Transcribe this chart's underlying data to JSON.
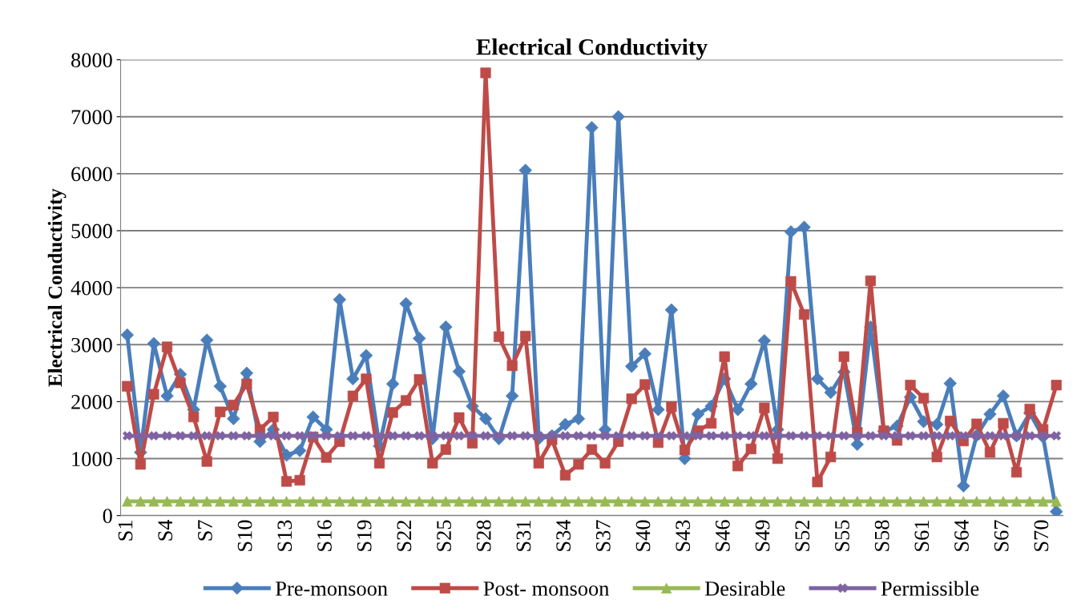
{
  "chart_data": {
    "type": "line",
    "title": "Electrical Conductivity",
    "ylabel": "Electrical Conductivity",
    "categories": [
      "S1",
      null,
      null,
      "S4",
      null,
      null,
      "S7",
      null,
      null,
      "S10",
      null,
      null,
      "S13",
      null,
      null,
      "S16",
      null,
      null,
      "S19",
      null,
      null,
      "S22",
      null,
      null,
      "S25",
      null,
      null,
      "S28",
      null,
      null,
      "S31",
      null,
      null,
      "S34",
      null,
      null,
      "S37",
      null,
      null,
      "S40",
      null,
      null,
      "S43",
      null,
      null,
      "S46",
      null,
      null,
      "S49",
      null,
      null,
      "S52",
      null,
      null,
      "S55",
      null,
      null,
      "S58",
      null,
      null,
      "S61",
      null,
      null,
      "S64",
      null,
      null,
      "S67",
      null,
      null,
      "S70",
      null
    ],
    "series": [
      {
        "name": "Pre-monsoon",
        "color": "#4a7ebb",
        "marker": "diamond",
        "values": [
          3170,
          1110,
          3020,
          2100,
          2480,
          1860,
          3080,
          2270,
          1700,
          2500,
          1300,
          1510,
          1060,
          1140,
          1730,
          1510,
          3790,
          2400,
          2810,
          1220,
          2310,
          3720,
          3110,
          1350,
          3310,
          2530,
          1920,
          1700,
          1350,
          2100,
          6060,
          1350,
          1400,
          1600,
          1700,
          6810,
          1510,
          7000,
          2620,
          2840,
          1860,
          3610,
          1000,
          1780,
          1920,
          2400,
          1860,
          2310,
          3070,
          1510,
          4980,
          5060,
          2400,
          2160,
          2520,
          1250,
          3310,
          1480,
          1570,
          2080,
          1650,
          1600,
          2320,
          520,
          1410,
          1780,
          2100,
          1400,
          1800,
          1380,
          70
        ]
      },
      {
        "name": "Post- monsoon",
        "color": "#be4b48",
        "marker": "square",
        "values": [
          2270,
          900,
          2130,
          2960,
          2330,
          1730,
          950,
          1820,
          1940,
          2310,
          1510,
          1730,
          600,
          620,
          1380,
          1020,
          1300,
          2100,
          2400,
          920,
          1810,
          2020,
          2390,
          920,
          1160,
          1720,
          1270,
          7770,
          3140,
          2630,
          3150,
          920,
          1330,
          710,
          900,
          1160,
          920,
          1300,
          2050,
          2300,
          1280,
          1910,
          1150,
          1490,
          1620,
          2790,
          870,
          1170,
          1890,
          1000,
          4110,
          3530,
          590,
          1030,
          2790,
          1460,
          4120,
          1490,
          1320,
          2290,
          2060,
          1030,
          1660,
          1310,
          1610,
          1110,
          1620,
          760,
          1870,
          1510,
          2290
        ]
      },
      {
        "name": "Desirable",
        "color": "#98b954",
        "marker": "triangle",
        "values": [
          250,
          250,
          250,
          250,
          250,
          250,
          250,
          250,
          250,
          250,
          250,
          250,
          250,
          250,
          250,
          250,
          250,
          250,
          250,
          250,
          250,
          250,
          250,
          250,
          250,
          250,
          250,
          250,
          250,
          250,
          250,
          250,
          250,
          250,
          250,
          250,
          250,
          250,
          250,
          250,
          250,
          250,
          250,
          250,
          250,
          250,
          250,
          250,
          250,
          250,
          250,
          250,
          250,
          250,
          250,
          250,
          250,
          250,
          250,
          250,
          250,
          250,
          250,
          250,
          250,
          250,
          250,
          250,
          250,
          250,
          250
        ]
      },
      {
        "name": "Permissible",
        "color": "#7f63a1",
        "marker": "cross",
        "values": [
          1400,
          1400,
          1400,
          1400,
          1400,
          1400,
          1400,
          1400,
          1400,
          1400,
          1400,
          1400,
          1400,
          1400,
          1400,
          1400,
          1400,
          1400,
          1400,
          1400,
          1400,
          1400,
          1400,
          1400,
          1400,
          1400,
          1400,
          1400,
          1400,
          1400,
          1400,
          1400,
          1400,
          1400,
          1400,
          1400,
          1400,
          1400,
          1400,
          1400,
          1400,
          1400,
          1400,
          1400,
          1400,
          1400,
          1400,
          1400,
          1400,
          1400,
          1400,
          1400,
          1400,
          1400,
          1400,
          1400,
          1400,
          1400,
          1400,
          1400,
          1400,
          1400,
          1400,
          1400,
          1400,
          1400,
          1400,
          1400,
          1400,
          1400,
          1400
        ]
      }
    ],
    "ylim": [
      0,
      8000
    ],
    "yticks": [
      0,
      1000,
      2000,
      3000,
      4000,
      5000,
      6000,
      7000,
      8000
    ],
    "grid": "y",
    "legend": "bottom",
    "line_style": "solid"
  }
}
